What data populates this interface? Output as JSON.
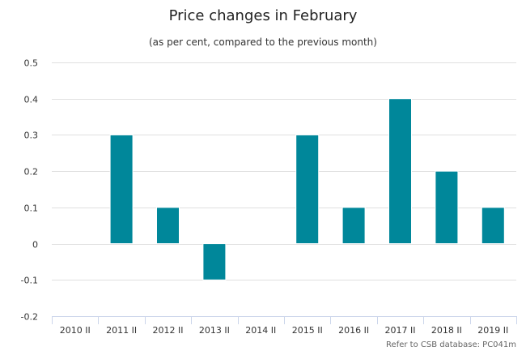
{
  "chart_data": {
    "type": "bar",
    "title": "Price changes in February",
    "subtitle": "(as per cent, compared to the previous month)",
    "categories": [
      "2010 II",
      "2011 II",
      "2012 II",
      "2013 II",
      "2014 II",
      "2015 II",
      "2016 II",
      "2017 II",
      "2018 II",
      "2019 II"
    ],
    "values": [
      0,
      0.3,
      0.1,
      -0.1,
      0,
      0.3,
      0.1,
      0.4,
      0.2,
      0.1
    ],
    "ylim": [
      -0.2,
      0.5
    ],
    "yticks": [
      0.5,
      0.4,
      0.3,
      0.2,
      0.1,
      0,
      -0.1,
      -0.2
    ],
    "ytick_labels": [
      "0.5",
      "0.4",
      "0.3",
      "0.2",
      "0.1",
      "0",
      "-0.1",
      "-0.2"
    ],
    "grid": true,
    "bar_color": "#00879a",
    "xlabel": "",
    "ylabel": "",
    "source_note": "Refer to CSB database: PC041m"
  }
}
